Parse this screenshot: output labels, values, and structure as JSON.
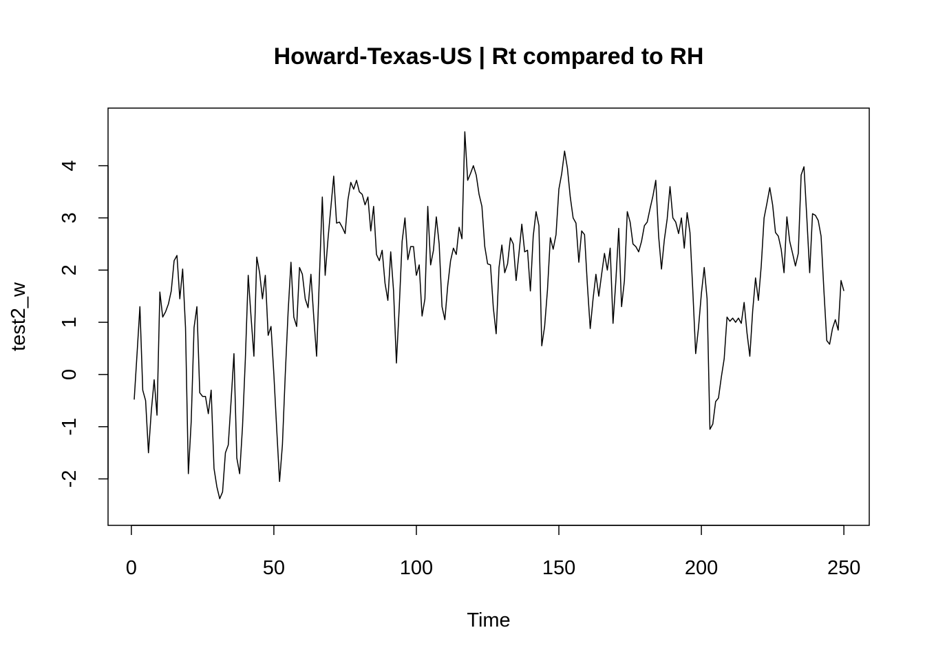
{
  "chart_data": {
    "type": "line",
    "title": "Howard-Texas-US | Rt compared to RH",
    "xlabel": "Time",
    "ylabel": "test2_w",
    "xlim": [
      1,
      249
    ],
    "ylim": [
      -2.6,
      4.8
    ],
    "x_ticks": [
      0,
      50,
      100,
      150,
      200,
      250
    ],
    "x_tick_labels": [
      "0",
      "50",
      "100",
      "150",
      "200",
      "250"
    ],
    "y_ticks": [
      -2,
      -1,
      0,
      1,
      2,
      3,
      4
    ],
    "y_tick_labels": [
      "-2",
      "-1",
      "0",
      "1",
      "2",
      "3",
      "4"
    ],
    "grid": false,
    "legend": "none",
    "x_start": 1,
    "x_step": 1,
    "values": [
      -0.48,
      0.4,
      1.3,
      -0.3,
      -0.5,
      -1.5,
      -0.7,
      -0.1,
      -0.78,
      1.58,
      1.1,
      1.2,
      1.35,
      1.6,
      2.18,
      2.28,
      1.45,
      2.02,
      0.9,
      -1.9,
      -0.9,
      0.9,
      1.3,
      -0.35,
      -0.42,
      -0.42,
      -0.75,
      -0.3,
      -1.8,
      -2.15,
      -2.38,
      -2.25,
      -1.5,
      -1.35,
      -0.5,
      0.4,
      -1.6,
      -1.9,
      -1.0,
      0.3,
      1.9,
      1.1,
      0.35,
      2.25,
      1.95,
      1.45,
      1.9,
      0.75,
      0.92,
      0.0,
      -1.05,
      -2.05,
      -1.35,
      0.0,
      1.2,
      2.15,
      1.1,
      0.92,
      2.05,
      1.92,
      1.45,
      1.28,
      1.92,
      1.1,
      0.35,
      1.9,
      3.4,
      1.9,
      2.6,
      3.2,
      3.8,
      2.9,
      2.92,
      2.82,
      2.7,
      3.35,
      3.68,
      3.55,
      3.72,
      3.5,
      3.45,
      3.25,
      3.4,
      2.75,
      3.22,
      2.3,
      2.18,
      2.38,
      1.75,
      1.42,
      2.35,
      1.6,
      0.22,
      1.3,
      2.55,
      3.0,
      2.2,
      2.45,
      2.45,
      1.9,
      2.1,
      1.12,
      1.45,
      3.22,
      2.1,
      2.38,
      3.02,
      2.5,
      1.3,
      1.05,
      1.7,
      2.18,
      2.42,
      2.3,
      2.82,
      2.6,
      4.65,
      3.72,
      3.85,
      4.0,
      3.82,
      3.45,
      3.22,
      2.45,
      2.12,
      2.1,
      1.28,
      0.78,
      2.05,
      2.48,
      1.95,
      2.12,
      2.62,
      2.5,
      1.8,
      2.32,
      2.88,
      2.35,
      2.38,
      1.6,
      2.65,
      3.12,
      2.85,
      0.55,
      0.92,
      1.62,
      2.62,
      2.4,
      2.68,
      3.55,
      3.85,
      4.28,
      3.95,
      3.4,
      3.0,
      2.9,
      2.15,
      2.75,
      2.68,
      1.72,
      0.88,
      1.45,
      1.92,
      1.5,
      1.92,
      2.32,
      2.0,
      2.42,
      0.98,
      1.8,
      2.8,
      1.3,
      1.8,
      3.12,
      2.92,
      2.5,
      2.45,
      2.35,
      2.55,
      2.85,
      2.92,
      3.18,
      3.42,
      3.72,
      2.65,
      2.02,
      2.58,
      2.98,
      3.6,
      3.0,
      2.92,
      2.7,
      3.0,
      2.42,
      3.1,
      2.72,
      1.6,
      0.4,
      0.9,
      1.55,
      2.05,
      1.45,
      -1.05,
      -0.95,
      -0.52,
      -0.45,
      -0.05,
      0.3,
      1.1,
      1.02,
      1.08,
      1.0,
      1.08,
      0.98,
      1.38,
      0.8,
      0.35,
      1.22,
      1.85,
      1.42,
      2.08,
      3.0,
      3.28,
      3.58,
      3.25,
      2.72,
      2.65,
      2.4,
      1.95,
      3.02,
      2.55,
      2.32,
      2.08,
      2.32,
      3.82,
      3.98,
      3.0,
      1.95,
      3.08,
      3.05,
      2.95,
      2.65,
      1.6,
      0.65,
      0.58,
      0.88,
      1.05,
      0.85,
      1.8,
      1.6
    ]
  }
}
